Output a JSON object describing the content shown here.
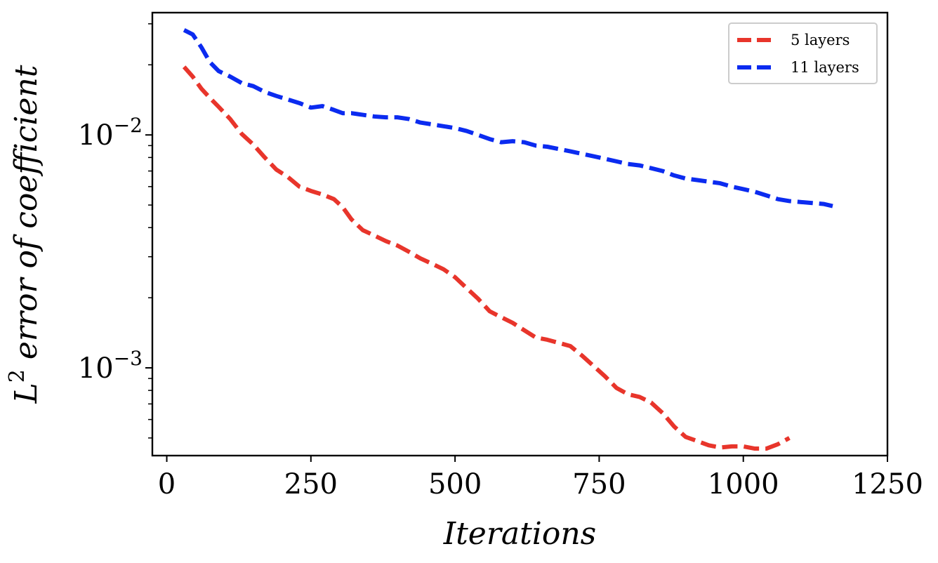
{
  "chart_data": {
    "type": "line",
    "title": "",
    "xlabel": "Iterations",
    "ylabel_parts": [
      "L",
      "2",
      " error of coefficient"
    ],
    "yscale": "log",
    "xlim": [
      -25,
      1250
    ],
    "ylim": [
      0.00042,
      0.0335
    ],
    "xticks": [
      0,
      250,
      500,
      750,
      1000,
      1250
    ],
    "xtick_labels": [
      "0",
      "250",
      "500",
      "750",
      "1000",
      "1250"
    ],
    "yticks": [
      0.001,
      0.01
    ],
    "ytick_labels": [
      {
        "base": "10",
        "exp": "−3"
      },
      {
        "base": "10",
        "exp": "−2"
      }
    ],
    "grid": false,
    "legend_position": "top-right",
    "series": [
      {
        "name": "5 layers",
        "color": "#e8352b",
        "x": [
          30,
          45,
          60,
          75,
          90,
          110,
          130,
          150,
          170,
          190,
          210,
          230,
          250,
          270,
          290,
          305,
          320,
          340,
          360,
          380,
          400,
          420,
          440,
          460,
          480,
          500,
          520,
          540,
          560,
          580,
          600,
          620,
          640,
          660,
          680,
          700,
          720,
          740,
          760,
          780,
          800,
          820,
          840,
          860,
          880,
          900,
          920,
          940,
          960,
          980,
          1000,
          1020,
          1040,
          1060,
          1080
        ],
        "values": [
          0.0196,
          0.0178,
          0.0158,
          0.0144,
          0.0132,
          0.0117,
          0.0101,
          0.0091,
          0.008,
          0.0071,
          0.0066,
          0.006,
          0.00575,
          0.00555,
          0.0053,
          0.0049,
          0.00435,
          0.0039,
          0.0037,
          0.0035,
          0.00335,
          0.00315,
          0.00295,
          0.0028,
          0.00265,
          0.00245,
          0.0022,
          0.00198,
          0.00175,
          0.00165,
          0.00156,
          0.00145,
          0.00135,
          0.00132,
          0.00128,
          0.00124,
          0.00113,
          0.00102,
          0.00092,
          0.00082,
          0.00077,
          0.00075,
          0.00071,
          0.00064,
          0.00056,
          0.000505,
          0.000485,
          0.000465,
          0.000455,
          0.00046,
          0.00046,
          0.00045,
          0.00045,
          0.00047,
          0.0005
        ]
      },
      {
        "name": "11 layers",
        "color": "#0b2bf0",
        "x": [
          30,
          45,
          60,
          75,
          90,
          110,
          130,
          150,
          170,
          190,
          210,
          230,
          250,
          270,
          290,
          305,
          320,
          340,
          360,
          380,
          400,
          420,
          440,
          460,
          480,
          500,
          520,
          540,
          560,
          580,
          600,
          620,
          640,
          660,
          680,
          700,
          720,
          740,
          760,
          780,
          800,
          820,
          840,
          860,
          880,
          900,
          920,
          940,
          960,
          980,
          1000,
          1020,
          1040,
          1060,
          1080,
          1100,
          1120,
          1140,
          1155
        ],
        "values": [
          0.0282,
          0.027,
          0.0238,
          0.0205,
          0.0188,
          0.0178,
          0.0167,
          0.0162,
          0.0153,
          0.0147,
          0.0142,
          0.0137,
          0.0131,
          0.0133,
          0.0128,
          0.0124,
          0.0124,
          0.0122,
          0.012,
          0.0119,
          0.0119,
          0.0117,
          0.0113,
          0.0111,
          0.0109,
          0.0107,
          0.0104,
          0.01,
          0.0096,
          0.0093,
          0.0094,
          0.0093,
          0.009,
          0.0089,
          0.0087,
          0.0085,
          0.0083,
          0.0081,
          0.0079,
          0.0077,
          0.0075,
          0.0074,
          0.0072,
          0.007,
          0.0067,
          0.0065,
          0.0064,
          0.0063,
          0.0062,
          0.006,
          0.00585,
          0.0057,
          0.0055,
          0.0053,
          0.0052,
          0.00515,
          0.0051,
          0.00505,
          0.00495
        ]
      }
    ]
  }
}
